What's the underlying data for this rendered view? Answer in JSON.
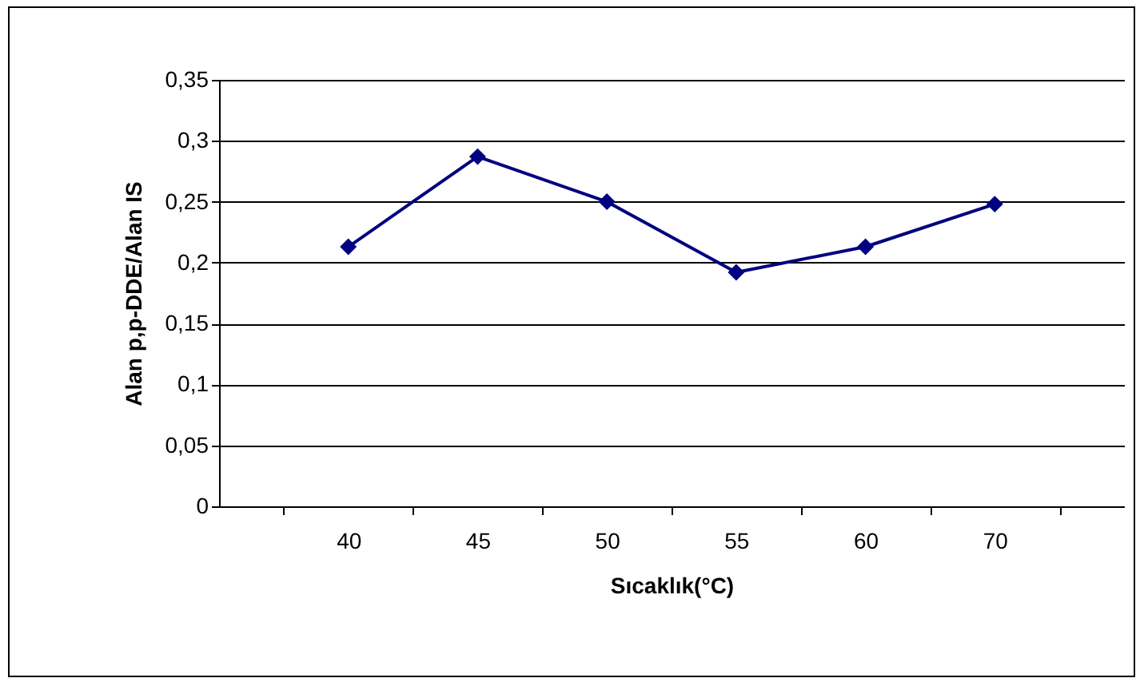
{
  "chart_data": {
    "type": "line",
    "xlabel": "Sıcaklık(°C)",
    "ylabel": "Alan p,p-DDE/Alan IS",
    "categories": [
      "40",
      "45",
      "50",
      "55",
      "60",
      "70"
    ],
    "series": [
      {
        "color": "#000080",
        "values": [
          0.213,
          0.287,
          0.25,
          0.192,
          0.213,
          0.248
        ]
      }
    ],
    "ylim": [
      0,
      0.35
    ],
    "yticks": [
      {
        "value": 0,
        "label": "0"
      },
      {
        "value": 0.05,
        "label": "0,05"
      },
      {
        "value": 0.1,
        "label": "0,1"
      },
      {
        "value": 0.15,
        "label": "0,15"
      },
      {
        "value": 0.2,
        "label": "0,2"
      },
      {
        "value": 0.25,
        "label": "0,25"
      },
      {
        "value": 0.3,
        "label": "0,3"
      },
      {
        "value": 0.35,
        "label": "0,35"
      }
    ],
    "grid": "y",
    "marker": "diamond",
    "line_style": "solid",
    "legend": false
  }
}
